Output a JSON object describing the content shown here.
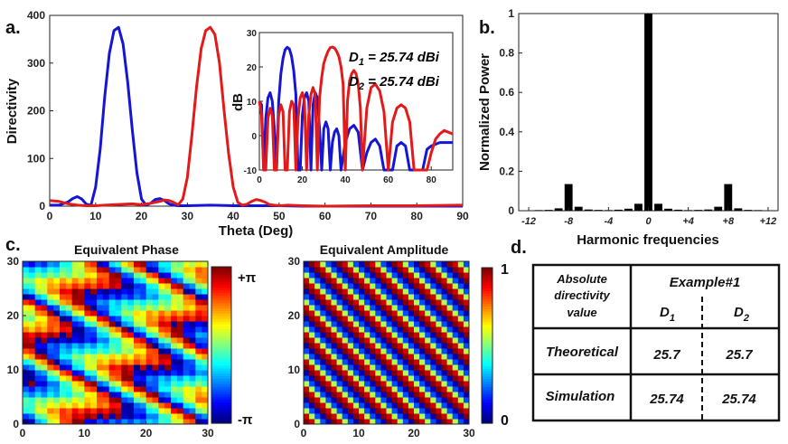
{
  "panel_labels": {
    "a": "a.",
    "b": "b.",
    "c": "c.",
    "d": "d."
  },
  "chart_data": [
    {
      "id": "a-main",
      "type": "line",
      "title": "",
      "xlabel": "Theta (Deg)",
      "ylabel": "Directivity",
      "xlim": [
        0,
        90
      ],
      "ylim": [
        0,
        400
      ],
      "xticks": [
        0,
        10,
        20,
        30,
        40,
        50,
        60,
        70,
        80,
        90
      ],
      "yticks": [
        0,
        100,
        200,
        300,
        400
      ],
      "series": [
        {
          "name": "blue",
          "color": "#1515d6",
          "peak": 375,
          "peak_at": 15,
          "x": [
            0,
            2,
            4,
            5,
            6,
            7,
            8,
            9,
            10,
            11,
            12,
            13,
            14,
            15,
            16,
            17,
            18,
            19,
            20,
            21,
            22,
            23,
            24,
            25,
            26,
            27,
            28,
            30,
            35,
            40,
            45,
            50,
            55,
            60,
            65,
            70,
            75,
            80,
            85,
            90
          ],
          "y": [
            2,
            2,
            9,
            16,
            20,
            15,
            4,
            2,
            40,
            120,
            230,
            320,
            368,
            375,
            340,
            260,
            160,
            70,
            15,
            2,
            6,
            14,
            16,
            12,
            5,
            2,
            1,
            1,
            2,
            1,
            1,
            1,
            0,
            0,
            0,
            0,
            0,
            0,
            0,
            0
          ]
        },
        {
          "name": "red",
          "color": "#e31a1a",
          "peak": 375,
          "peak_at": 35,
          "x": [
            0,
            2,
            4,
            6,
            8,
            10,
            12,
            14,
            16,
            18,
            20,
            22,
            24,
            25,
            26,
            27,
            28,
            29,
            30,
            31,
            32,
            33,
            34,
            35,
            36,
            37,
            38,
            39,
            40,
            41,
            42,
            43,
            44,
            45,
            46,
            47,
            48,
            50,
            52,
            55,
            60,
            70,
            80,
            90
          ],
          "y": [
            12,
            10,
            5,
            2,
            1,
            1,
            2,
            3,
            4,
            5,
            3,
            6,
            10,
            13,
            12,
            8,
            3,
            15,
            60,
            150,
            250,
            330,
            368,
            375,
            360,
            300,
            200,
            110,
            40,
            8,
            2,
            4,
            10,
            14,
            12,
            8,
            3,
            1,
            2,
            1,
            0,
            1,
            1,
            2
          ]
        }
      ]
    },
    {
      "id": "a-inset",
      "type": "line",
      "ylabel": "dB",
      "xlim": [
        0,
        90
      ],
      "ylim": [
        -10,
        30
      ],
      "xticks": [
        0,
        20,
        40,
        60,
        80
      ],
      "yticks": [
        -10,
        0,
        10,
        20,
        30
      ],
      "annotations": [
        {
          "sym": "D",
          "sub": "1",
          "text": " = 25.74 dBi"
        },
        {
          "sym": "D",
          "sub": "2",
          "text": " = 25.74 dBi"
        }
      ],
      "series": [
        {
          "name": "blue",
          "color": "#1515d6",
          "x": [
            0,
            1,
            2,
            3,
            4,
            5,
            6,
            7,
            8,
            9,
            10,
            11,
            12,
            13,
            14,
            15,
            16,
            17,
            18,
            19,
            20,
            21,
            22,
            23,
            24,
            25,
            26,
            27,
            28,
            29,
            30,
            31,
            32,
            33,
            34,
            35,
            36,
            37,
            38,
            40,
            42,
            44,
            46,
            48,
            50,
            52,
            54,
            56,
            58,
            60,
            62,
            64,
            66,
            68,
            70,
            72,
            74,
            76,
            78,
            80,
            82,
            84,
            86,
            88,
            90
          ],
          "y": [
            10,
            9,
            -10,
            5,
            11,
            12.5,
            10,
            2,
            -10,
            10,
            18,
            22.5,
            25,
            25.7,
            25.2,
            23,
            19,
            12,
            -10,
            -10,
            6,
            11,
            12.5,
            10,
            -10,
            9,
            12.5,
            11,
            2,
            -10,
            2,
            4,
            2,
            -10,
            -2,
            1,
            2,
            0,
            -10,
            -2,
            2,
            3,
            1,
            -10,
            -5,
            -2,
            -1,
            -3,
            -10,
            -10,
            -10,
            -3,
            -2,
            -3,
            -10,
            -10,
            -10,
            -10,
            -4,
            -3,
            -2.5,
            -2,
            -2,
            -2,
            -2
          ]
        },
        {
          "name": "red",
          "color": "#e31a1a",
          "x": [
            0,
            1,
            2,
            3,
            4,
            5,
            6,
            7,
            8,
            9,
            10,
            11,
            12,
            13,
            14,
            15,
            16,
            17,
            18,
            19,
            20,
            21,
            22,
            23,
            24,
            25,
            26,
            27,
            28,
            29,
            30,
            31,
            32,
            33,
            34,
            35,
            36,
            37,
            38,
            39,
            40,
            41,
            42,
            43,
            44,
            45,
            46,
            47,
            48,
            50,
            52,
            54,
            56,
            58,
            60,
            62,
            64,
            66,
            68,
            70,
            72,
            74,
            76,
            78,
            80,
            82,
            84,
            86,
            88,
            90
          ],
          "y": [
            10,
            6,
            -10,
            -10,
            5,
            8,
            6,
            -10,
            -10,
            6,
            9,
            7,
            -10,
            -10,
            7,
            10,
            9,
            -10,
            5,
            11,
            12.5,
            10,
            -10,
            6,
            12,
            14,
            12,
            -10,
            11,
            17,
            21,
            23,
            24.6,
            25.6,
            25.8,
            25.5,
            24.5,
            23,
            20,
            15,
            -10,
            10,
            16,
            18,
            19,
            18,
            15,
            8,
            -10,
            8,
            14,
            15,
            13,
            7,
            -10,
            4,
            8,
            9,
            8,
            4,
            -10,
            -10,
            -10,
            -10,
            -5,
            -1,
            0.5,
            1.5,
            1,
            0.5
          ]
        }
      ]
    },
    {
      "id": "b",
      "type": "bar",
      "xlabel": "Harmonic frequencies",
      "ylabel": "Normalized Power",
      "xlim": [
        -13,
        13
      ],
      "ylim": [
        0,
        1
      ],
      "yticks": [
        0,
        0.2,
        0.4,
        0.6,
        0.8,
        1
      ],
      "xtick_labels": [
        {
          "x": -12,
          "label": "-12"
        },
        {
          "x": -8,
          "label": "-8"
        },
        {
          "x": -4,
          "label": "-4"
        },
        {
          "x": 0,
          "label": "0"
        },
        {
          "x": 4,
          "label": "+4"
        },
        {
          "x": 8,
          "label": "+8"
        },
        {
          "x": 12,
          "label": "+12"
        }
      ],
      "categories": [
        -12,
        -11,
        -10,
        -9,
        -8,
        -7,
        -6,
        -5,
        -4,
        -3,
        -2,
        -1,
        0,
        1,
        2,
        3,
        4,
        5,
        6,
        7,
        8,
        9,
        10,
        11,
        12
      ],
      "values": [
        0,
        0.003,
        0.004,
        0.012,
        0.135,
        0.02,
        0.006,
        0.004,
        0.003,
        0.005,
        0.01,
        0.035,
        1.0,
        0.035,
        0.01,
        0.005,
        0.003,
        0.004,
        0.006,
        0.02,
        0.135,
        0.012,
        0.004,
        0.003,
        0
      ]
    },
    {
      "id": "c-phase",
      "type": "heatmap",
      "title": "Equivalent Phase",
      "xlim": [
        0,
        30
      ],
      "ylim": [
        0,
        30
      ],
      "ticks": [
        0,
        10,
        20,
        30
      ],
      "colorbar_top": "+π",
      "colorbar_bottom": "-π"
    },
    {
      "id": "c-amplitude",
      "type": "heatmap",
      "title": "Equivalent Amplitude",
      "xlim": [
        0,
        30
      ],
      "ylim": [
        0,
        30
      ],
      "ticks": [
        0,
        10,
        20,
        30
      ],
      "colorbar_top": "1",
      "colorbar_bottom": "0"
    },
    {
      "id": "d",
      "type": "table",
      "header_left": [
        "Absolute",
        "directivity",
        "value"
      ],
      "header_example": "Example#1",
      "col_d1": {
        "sym": "D",
        "sub": "1"
      },
      "col_d2": {
        "sym": "D",
        "sub": "2"
      },
      "rows": [
        {
          "label": "Theoretical",
          "d1": "25.7",
          "d2": "25.7"
        },
        {
          "label": "Simulation",
          "d1": "25.74",
          "d2": "25.74"
        }
      ]
    }
  ]
}
